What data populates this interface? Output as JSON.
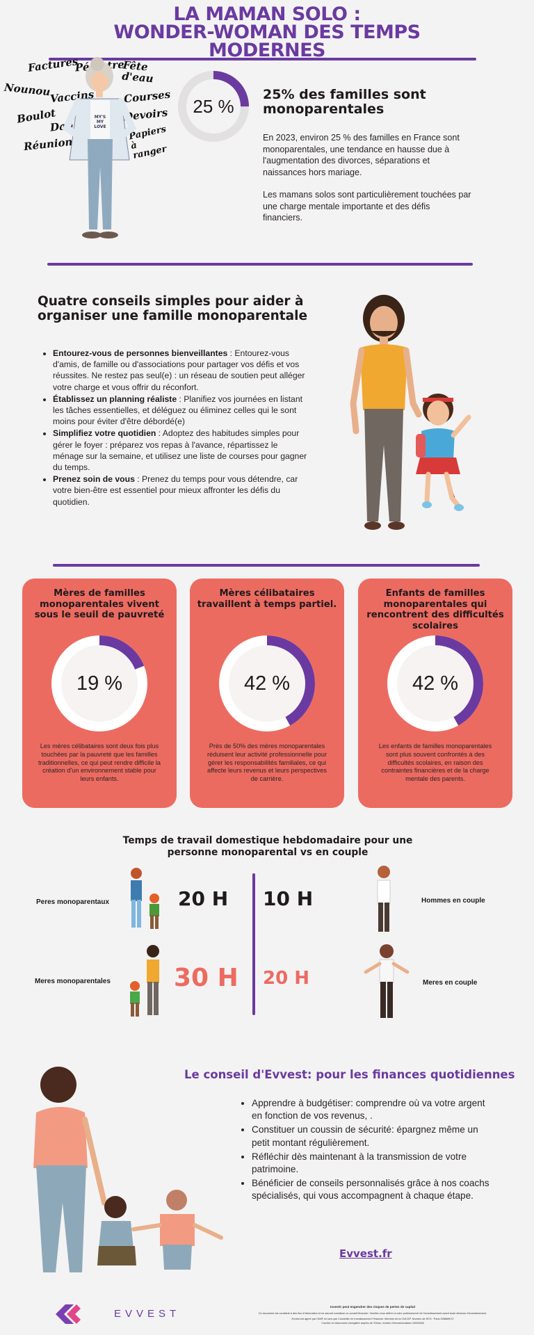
{
  "header": {
    "title_lines": [
      "LA MAMAN SOLO :",
      "WONDER-WOMAN DES TEMPS",
      "MODERNES"
    ]
  },
  "intro": {
    "stat": "25 %",
    "stat_value": 25,
    "heading": "25% des familles sont monoparentales",
    "paragraph1": "En 2023, environ 25 % des familles en France sont monoparentales, une tendance en hausse due à l'augmentation des divorces, séparations et naissances hors mariage.",
    "paragraph2": "Les mamans solos sont particulièrement touchées par une charge mentale importante et des défis financiers.",
    "words": [
      "Factures",
      "Pédiatre",
      "Fête d'eau",
      "Nounou",
      "Vaccins",
      "Courses",
      "Boulot",
      "Devoirs",
      "Danse",
      "Papiers à ranger",
      "Réunions"
    ],
    "tshirt_text": "MY'S MY LOVE"
  },
  "tips": {
    "heading": "Quatre conseils simples pour aider à organiser une famille monoparentale",
    "items": [
      {
        "bold": "Entourez-vous de personnes bienveillantes",
        "text": " : Entourez-vous d'amis, de famille ou d'associations pour partager vos défis et vos réussites. Ne restez pas seul(e) : un réseau de soutien peut alléger votre charge et vous offrir du réconfort."
      },
      {
        "bold": "Établissez un planning réaliste",
        "text": " : Planifiez vos journées en listant les tâches essentielles, et déléguez ou éliminez celles qui le sont moins pour éviter d'être débordé(e)"
      },
      {
        "bold": "Simplifiez votre quotidien",
        "text": " : Adoptez des habitudes simples pour gérer le foyer : préparez vos repas à l'avance, répartissez le ménage sur la semaine, et utilisez une liste de courses pour gagner du temps."
      },
      {
        "bold": "Prenez soin de vous",
        "text": " : Prenez du temps pour vous détendre, car votre bien-être est essentiel pour mieux affronter les défis du quotidien."
      }
    ]
  },
  "cards": [
    {
      "title": "Mères de familles monoparentales vivent sous le seuil de pauvreté",
      "stat": "19 %",
      "value": 19,
      "text": "Les mères célibataires sont deux fois plus touchées par la pauvreté que les familles traditionnelles, ce qui peut rendre difficile la création d'un environnement stable pour leurs enfants."
    },
    {
      "title": "Mères célibataires travaillent à temps partiel.",
      "stat": "42 %",
      "value": 42,
      "text": "Près de 50% des mères monoparentales réduisent leur activité professionnelle pour gérer les responsabilités familiales, ce qui affecte leurs revenus et leurs perspectives de carrière."
    },
    {
      "title": "Enfants de familles monoparentales qui rencontrent des difficultés scolaires",
      "stat": "42 %",
      "value": 42,
      "text": "Les enfants de familles monoparentales sont plus souvent confrontés à des difficultés scolaires, en raison des contraintes financières et de la charge mentale des parents."
    }
  ],
  "chores": {
    "heading": "Temps de travail domestique hebdomadaire pour une personne monoparental vs en couple",
    "rows": [
      {
        "left_label": "Peres monoparentaux",
        "left_hours": "20 H",
        "right_hours": "10 H",
        "right_label": "Hommes en couple"
      },
      {
        "left_label": "Meres monoparentales",
        "left_hours": "30 H",
        "right_hours": "20 H",
        "right_label": "Meres en couple"
      }
    ]
  },
  "evvest": {
    "heading": "Le conseil d'Evvest: pour les finances quotidiennes",
    "items": [
      "Apprendre à budgétiser: comprendre où va votre argent en fonction de vos revenus, .",
      "Constituer un coussin de sécurité: épargnez même un petit montant régulièrement.",
      "Réfléchir dès maintenant à la transmission de votre patrimoine.",
      "Bénéficier de conseils personnalisés grâce à nos coachs spécialisés, qui vous accompagnent à chaque étape."
    ],
    "link": "Evvest.fr",
    "logo_text": "EVVEST"
  },
  "footer": {
    "line1": "Investir peut engendrer des risques de pertes de capital",
    "line2": "Ce document est constitué à des fins d'information et ne saurait constituer un conseil financier. Veuillez vous référer à votre professionnel de l'investissement avant toute décision d'investissement.",
    "line3": "Evvest est agréé par l'AMF en tant que Conseiller en Investissement Financier. Membre de la CNCGP. Numéro de RCS : Paris 928689072",
    "line4": "Courtier en Assurance enregistré auprès de l'Orias, numéro d'immatriculation 24000465"
  },
  "colors": {
    "purple": "#6a3aa0",
    "coral": "#ec6b61",
    "background": "#f4f3f3"
  }
}
